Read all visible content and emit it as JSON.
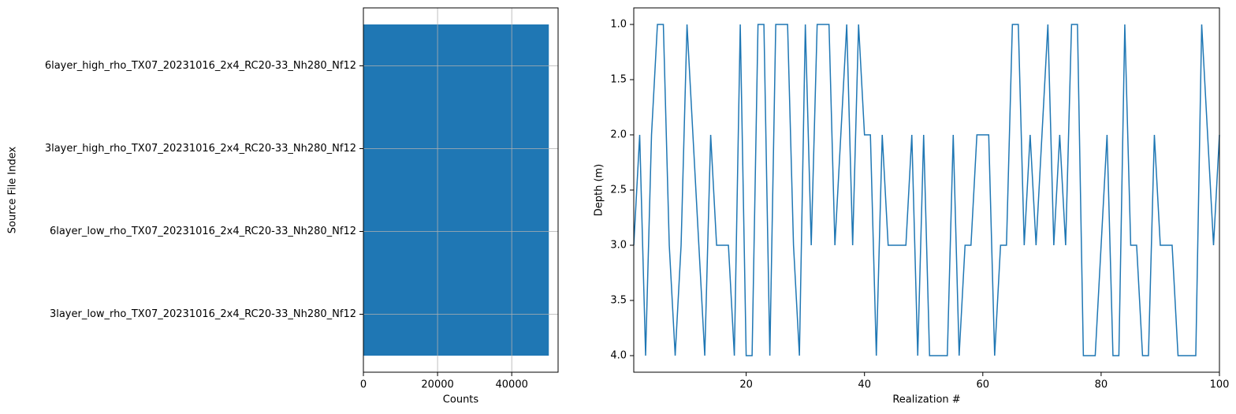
{
  "chart_data": [
    {
      "type": "bar",
      "orientation": "horizontal",
      "categories": [
        "3layer_low_rho_TX07_20231016_2x4_RC20-33_Nh280_Nf12",
        "6layer_low_rho_TX07_20231016_2x4_RC20-33_Nh280_Nf12",
        "3layer_high_rho_TX07_20231016_2x4_RC20-33_Nh280_Nf12",
        "6layer_high_rho_TX07_20231016_2x4_RC20-33_Nh280_Nf12"
      ],
      "values": [
        50000,
        50000,
        50000,
        50000
      ],
      "color": "#1f77b4",
      "xlim": [
        0,
        52500
      ],
      "xticks": [
        0,
        20000,
        40000
      ],
      "grid": true,
      "x_label": "Counts",
      "y_label": "Source File Index"
    },
    {
      "type": "line",
      "color": "#1f77b4",
      "x": [
        1,
        2,
        3,
        4,
        5,
        6,
        7,
        8,
        9,
        10,
        11,
        12,
        13,
        14,
        15,
        16,
        17,
        18,
        19,
        20,
        21,
        22,
        23,
        24,
        25,
        26,
        27,
        28,
        29,
        30,
        31,
        32,
        33,
        34,
        35,
        36,
        37,
        38,
        39,
        40,
        41,
        42,
        43,
        44,
        45,
        46,
        47,
        48,
        49,
        50,
        51,
        52,
        53,
        54,
        55,
        56,
        57,
        58,
        59,
        60,
        61,
        62,
        63,
        64,
        65,
        66,
        67,
        68,
        69,
        70,
        71,
        72,
        73,
        74,
        75,
        76,
        77,
        78,
        79,
        80,
        81,
        82,
        83,
        84,
        85,
        86,
        87,
        88,
        89,
        90,
        91,
        92,
        93,
        94,
        95,
        96,
        97,
        98,
        99,
        100
      ],
      "values": [
        3,
        2,
        4,
        2,
        1,
        1,
        3,
        4,
        3,
        1,
        2,
        3,
        4,
        2,
        3,
        3,
        3,
        4,
        1,
        4,
        4,
        1,
        1,
        4,
        1,
        1,
        1,
        3,
        4,
        1,
        3,
        1,
        1,
        1,
        3,
        2,
        1,
        3,
        1,
        2,
        2,
        4,
        2,
        3,
        3,
        3,
        3,
        2,
        4,
        2,
        4,
        4,
        4,
        4,
        2,
        4,
        3,
        3,
        2,
        2,
        2,
        4,
        3,
        3,
        1,
        1,
        3,
        2,
        3,
        2,
        1,
        3,
        2,
        3,
        1,
        1,
        4,
        4,
        4,
        3,
        2,
        4,
        4,
        1,
        3,
        3,
        4,
        4,
        2,
        3,
        3,
        3,
        4,
        4,
        4,
        4,
        1,
        2,
        3,
        2
      ],
      "xlim": [
        1,
        100
      ],
      "xticks": [
        20,
        40,
        60,
        80,
        100
      ],
      "ylim": [
        4.15,
        0.85
      ],
      "inverted_y": true,
      "yticks": [
        {
          "value": 1,
          "label": "1.0"
        },
        1.5,
        {
          "value": 2,
          "label": "2.0"
        },
        2.5,
        {
          "value": 3,
          "label": "3.0"
        },
        3.5,
        {
          "value": 4,
          "label": "4.0"
        }
      ],
      "grid": false,
      "x_label": "Realization #",
      "y_label": "Depth (m)"
    }
  ]
}
